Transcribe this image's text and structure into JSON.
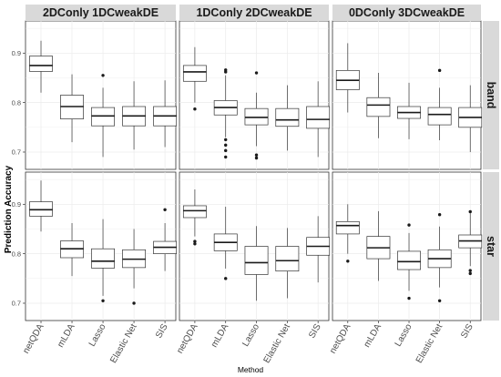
{
  "chart_data": {
    "type": "box",
    "xlabel": "Method",
    "ylabel": "Prediction Accuracy",
    "categories": [
      "netQDA",
      "mLDA",
      "Lasso",
      "Elastic Net",
      "SIS"
    ],
    "column_facets": [
      "2DConly 1DCweakDE",
      "1DConly 2DCweakDE",
      "0DConly 3DCweakDE"
    ],
    "row_facets": [
      "band",
      "star"
    ],
    "y_ticks": [
      "0.7",
      "0.8",
      "0.9"
    ],
    "ylim": [
      0.665,
      0.965
    ],
    "colors": {
      "panel_bg": "#ffffff",
      "strip_bg": "#d9d9d9",
      "grid": "#ebebeb",
      "box": "#333333"
    },
    "panels": [
      {
        "col": 0,
        "row": 0,
        "boxes": [
          {
            "cat": "netQDA",
            "min": 0.82,
            "q1": 0.863,
            "median": 0.875,
            "q3": 0.894,
            "max": 0.925,
            "outliers": []
          },
          {
            "cat": "mLDA",
            "min": 0.72,
            "q1": 0.767,
            "median": 0.792,
            "q3": 0.815,
            "max": 0.857,
            "outliers": []
          },
          {
            "cat": "Lasso",
            "min": 0.69,
            "q1": 0.753,
            "median": 0.773,
            "q3": 0.79,
            "max": 0.83,
            "outliers": [
              0.855
            ]
          },
          {
            "cat": "Elastic Net",
            "min": 0.705,
            "q1": 0.753,
            "median": 0.773,
            "q3": 0.792,
            "max": 0.843,
            "outliers": []
          },
          {
            "cat": "SIS",
            "min": 0.71,
            "q1": 0.753,
            "median": 0.773,
            "q3": 0.792,
            "max": 0.845,
            "outliers": []
          }
        ]
      },
      {
        "col": 1,
        "row": 0,
        "boxes": [
          {
            "cat": "netQDA",
            "min": 0.8,
            "q1": 0.843,
            "median": 0.862,
            "q3": 0.875,
            "max": 0.912,
            "outliers": [
              0.787
            ]
          },
          {
            "cat": "mLDA",
            "min": 0.73,
            "q1": 0.775,
            "median": 0.79,
            "q3": 0.804,
            "max": 0.855,
            "outliers": [
              0.866,
              0.862,
              0.725,
              0.714,
              0.703,
              0.69
            ]
          },
          {
            "cat": "Lasso",
            "min": 0.712,
            "q1": 0.755,
            "median": 0.77,
            "q3": 0.788,
            "max": 0.82,
            "outliers": [
              0.86,
              0.694,
              0.688
            ]
          },
          {
            "cat": "Elastic Net",
            "min": 0.703,
            "q1": 0.752,
            "median": 0.765,
            "q3": 0.788,
            "max": 0.835,
            "outliers": []
          },
          {
            "cat": "SIS",
            "min": 0.69,
            "q1": 0.748,
            "median": 0.766,
            "q3": 0.792,
            "max": 0.843,
            "outliers": []
          }
        ]
      },
      {
        "col": 2,
        "row": 0,
        "boxes": [
          {
            "cat": "netQDA",
            "min": 0.78,
            "q1": 0.826,
            "median": 0.845,
            "q3": 0.865,
            "max": 0.92,
            "outliers": []
          },
          {
            "cat": "mLDA",
            "min": 0.728,
            "q1": 0.772,
            "median": 0.795,
            "q3": 0.81,
            "max": 0.86,
            "outliers": []
          },
          {
            "cat": "Lasso",
            "min": 0.726,
            "q1": 0.768,
            "median": 0.78,
            "q3": 0.792,
            "max": 0.84,
            "outliers": []
          },
          {
            "cat": "Elastic Net",
            "min": 0.724,
            "q1": 0.755,
            "median": 0.776,
            "q3": 0.79,
            "max": 0.83,
            "outliers": [
              0.865
            ]
          },
          {
            "cat": "SIS",
            "min": 0.7,
            "q1": 0.75,
            "median": 0.77,
            "q3": 0.79,
            "max": 0.835,
            "outliers": []
          }
        ]
      },
      {
        "col": 0,
        "row": 1,
        "boxes": [
          {
            "cat": "netQDA",
            "min": 0.845,
            "q1": 0.876,
            "median": 0.889,
            "q3": 0.905,
            "max": 0.948,
            "outliers": []
          },
          {
            "cat": "mLDA",
            "min": 0.755,
            "q1": 0.792,
            "median": 0.81,
            "q3": 0.826,
            "max": 0.862,
            "outliers": []
          },
          {
            "cat": "Lasso",
            "min": 0.715,
            "q1": 0.771,
            "median": 0.785,
            "q3": 0.81,
            "max": 0.87,
            "outliers": [
              0.705
            ]
          },
          {
            "cat": "Elastic Net",
            "min": 0.73,
            "q1": 0.772,
            "median": 0.789,
            "q3": 0.808,
            "max": 0.85,
            "outliers": [
              0.7
            ]
          },
          {
            "cat": "SIS",
            "min": 0.765,
            "q1": 0.8,
            "median": 0.813,
            "q3": 0.825,
            "max": 0.862,
            "outliers": [
              0.889
            ]
          }
        ]
      },
      {
        "col": 1,
        "row": 1,
        "boxes": [
          {
            "cat": "netQDA",
            "min": 0.835,
            "q1": 0.873,
            "median": 0.887,
            "q3": 0.897,
            "max": 0.93,
            "outliers": [
              0.825,
              0.82
            ]
          },
          {
            "cat": "mLDA",
            "min": 0.77,
            "q1": 0.806,
            "median": 0.823,
            "q3": 0.84,
            "max": 0.895,
            "outliers": [
              0.75
            ]
          },
          {
            "cat": "Lasso",
            "min": 0.705,
            "q1": 0.758,
            "median": 0.782,
            "q3": 0.815,
            "max": 0.856,
            "outliers": []
          },
          {
            "cat": "Elastic Net",
            "min": 0.71,
            "q1": 0.765,
            "median": 0.786,
            "q3": 0.815,
            "max": 0.852,
            "outliers": []
          },
          {
            "cat": "SIS",
            "min": 0.742,
            "q1": 0.797,
            "median": 0.815,
            "q3": 0.833,
            "max": 0.876,
            "outliers": []
          }
        ]
      },
      {
        "col": 2,
        "row": 1,
        "boxes": [
          {
            "cat": "netQDA",
            "min": 0.8,
            "q1": 0.84,
            "median": 0.857,
            "q3": 0.865,
            "max": 0.9,
            "outliers": [
              0.785
            ]
          },
          {
            "cat": "mLDA",
            "min": 0.745,
            "q1": 0.79,
            "median": 0.812,
            "q3": 0.835,
            "max": 0.886,
            "outliers": []
          },
          {
            "cat": "Lasso",
            "min": 0.725,
            "q1": 0.768,
            "median": 0.784,
            "q3": 0.805,
            "max": 0.842,
            "outliers": [
              0.858,
              0.71
            ]
          },
          {
            "cat": "Elastic Net",
            "min": 0.732,
            "q1": 0.772,
            "median": 0.79,
            "q3": 0.808,
            "max": 0.855,
            "outliers": [
              0.879,
              0.705
            ]
          },
          {
            "cat": "SIS",
            "min": 0.775,
            "q1": 0.812,
            "median": 0.826,
            "q3": 0.838,
            "max": 0.882,
            "outliers": [
              0.885,
              0.766,
              0.76
            ]
          }
        ]
      }
    ]
  }
}
